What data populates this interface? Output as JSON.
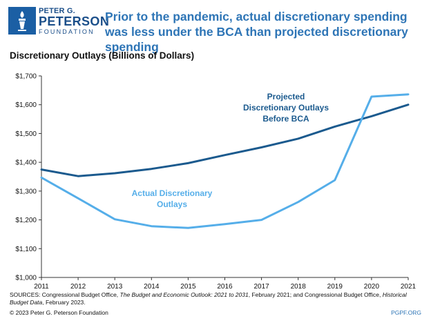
{
  "logo": {
    "line1": "PETER G.",
    "line2": "PETERSON",
    "line3": "FOUNDATION"
  },
  "title": "Prior to the pandemic, actual discretionary spending was less under the BCA than projected discretionary spending",
  "footer": {
    "sources_label": "SOURCES: Congressional Budget Office, ",
    "sources_italic1": "The Budget and Economic Outlook: 2021 to 2031",
    "sources_mid": ", February 2021; and Congressional Budget Office, ",
    "sources_italic2": "Historical Budget Data",
    "sources_end": ", February 2023.",
    "copyright": "© 2023 Peter G. Peterson Foundation",
    "site": "PGPF.ORG"
  },
  "chart_data": {
    "type": "line",
    "title": "Discretionary Outlays (Billions of Dollars)",
    "x": [
      2011,
      2012,
      2013,
      2014,
      2015,
      2016,
      2017,
      2018,
      2019,
      2020,
      2021
    ],
    "ylim": [
      1000,
      1700
    ],
    "yticks": [
      1000,
      1100,
      1200,
      1300,
      1400,
      1500,
      1600,
      1700
    ],
    "ytick_labels": [
      "$1,000",
      "$1,100",
      "$1,200",
      "$1,300",
      "$1,400",
      "$1,500",
      "$1,600",
      "$1,700"
    ],
    "grid": false,
    "series": [
      {
        "name": "Projected Discretionary Outlays Before BCA",
        "label_lines": [
          "Projected",
          "Discretionary Outlays",
          "Before BCA"
        ],
        "color": "#1b5a8e",
        "values": [
          1375,
          1352,
          1362,
          1377,
          1397,
          1425,
          1452,
          1482,
          1524,
          1560,
          1600
        ]
      },
      {
        "name": "Actual Discretionary Outlays",
        "label_lines": [
          "Actual Discretionary",
          "Outlays"
        ],
        "color": "#55aee9",
        "values": [
          1347,
          1275,
          1202,
          1178,
          1172,
          1185,
          1200,
          1262,
          1338,
          1628,
          1636
        ]
      }
    ]
  }
}
